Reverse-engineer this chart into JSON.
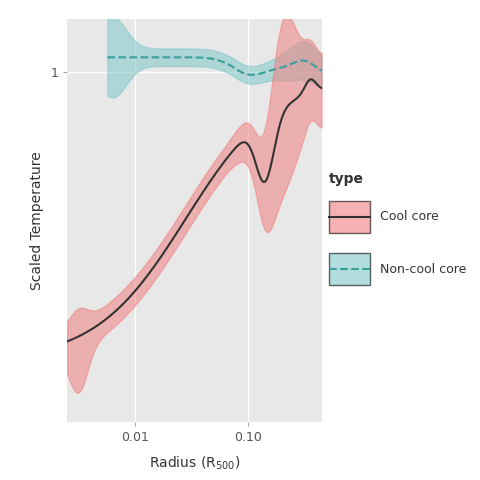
{
  "title": "",
  "xlabel": "Radius (R$_{500}$)",
  "ylabel": "Scaled Temperature",
  "bg_color": "#e8e8e8",
  "grid_color": "#ffffff",
  "cool_core_color": "#f08080",
  "cool_core_line": "#333333",
  "noncool_core_color": "#7fc8c8",
  "noncool_core_line": "#3a9e9e",
  "x_ticks": [
    0.01,
    0.1
  ],
  "x_tick_labels": [
    "0.01",
    "0.10"
  ],
  "y_ticks": [
    1.0
  ],
  "y_tick_labels": [
    "1"
  ],
  "legend_title": "type",
  "legend_entries": [
    "Cool core",
    "Non-cool core"
  ],
  "xlim_log": [
    -2.6,
    -0.35
  ],
  "ylim_log": [
    -1.0,
    0.15
  ]
}
